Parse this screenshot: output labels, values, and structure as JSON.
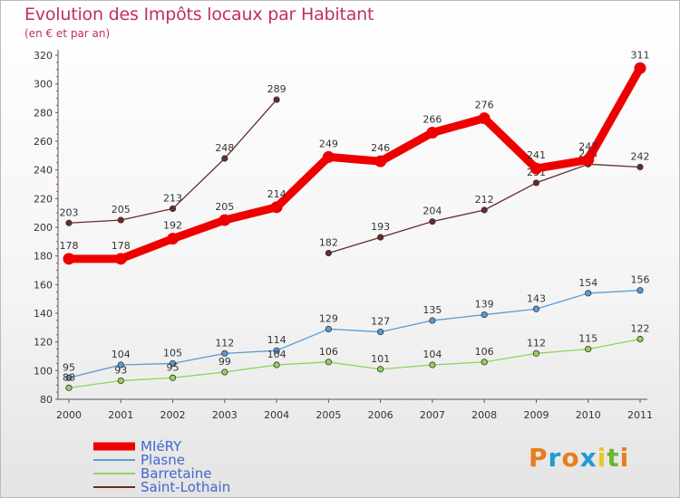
{
  "title": "Evolution des Impôts locaux par Habitant",
  "subtitle": "(en € et par an)",
  "brand": {
    "text": "Proxiti",
    "letters": [
      {
        "ch": "P",
        "color": "#e87d1e"
      },
      {
        "ch": "r",
        "color": "#1f9ad6"
      },
      {
        "ch": "o",
        "color": "#e87d1e"
      },
      {
        "ch": "x",
        "color": "#1f9ad6"
      },
      {
        "ch": "i",
        "color": "#e8c81e"
      },
      {
        "ch": "t",
        "color": "#6ab82e"
      },
      {
        "ch": "i",
        "color": "#e87d1e"
      }
    ]
  },
  "chart_data": {
    "type": "line",
    "x": [
      "2000",
      "2001",
      "2002",
      "2003",
      "2004",
      "2005",
      "2006",
      "2007",
      "2008",
      "2009",
      "2010",
      "2011"
    ],
    "ylim": [
      80,
      320
    ],
    "yticks": [
      80,
      100,
      120,
      140,
      160,
      180,
      200,
      220,
      240,
      260,
      280,
      300,
      320
    ],
    "grid": false,
    "legend_position": "bottom-left",
    "series": [
      {
        "name": "MIéRY",
        "color": "#ee0000",
        "emphasis": true,
        "values": [
          178,
          178,
          192,
          205,
          214,
          249,
          246,
          266,
          276,
          241,
          247,
          311
        ]
      },
      {
        "name": "Plasne",
        "color": "#5b9bd5",
        "values": [
          95,
          104,
          105,
          112,
          114,
          129,
          127,
          135,
          139,
          143,
          154,
          156
        ]
      },
      {
        "name": "Barretaine",
        "color": "#8fd45a",
        "values": [
          88,
          93,
          95,
          99,
          104,
          106,
          101,
          104,
          106,
          112,
          115,
          122
        ]
      },
      {
        "name": "Saint-Lothain",
        "color": "#6b2a2a",
        "values": [
          203,
          205,
          213,
          248,
          289,
          182,
          193,
          204,
          212,
          231,
          244,
          242
        ],
        "gaps": [
          [
            4,
            5
          ]
        ]
      }
    ]
  }
}
